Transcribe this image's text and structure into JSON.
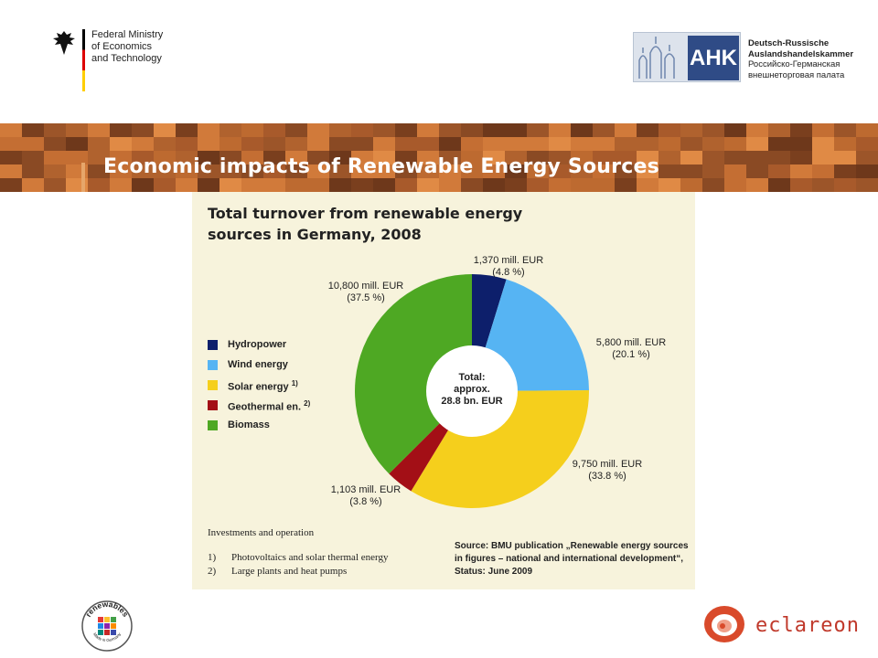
{
  "header": {
    "ministry_lines": "Federal Ministry\nof Economics\nand Technology",
    "ahk_label": "AHK",
    "ahk_lines": [
      "Deutsch-Russische",
      "Auslandshandelskammer",
      "Российско-Германская",
      "внешнеторговая палата"
    ]
  },
  "slide_title": "Economic impacts of Renewable Energy Sources",
  "chart_data": {
    "type": "pie",
    "title": "Total turnover from renewable energy sources in Germany, 2008",
    "center_label": "Total:\napprox.\n28.8 bn. EUR",
    "units": "mill. EUR",
    "slices": [
      {
        "name": "Hydropower",
        "value": 1370,
        "percent": 4.8,
        "color": "#0d1f6b",
        "label": "1,370 mill. EUR\n(4.8 %)"
      },
      {
        "name": "Wind energy",
        "value": 5800,
        "percent": 20.1,
        "color": "#56b4f3",
        "label": "5,800 mill. EUR\n(20.1 %)"
      },
      {
        "name": "Solar energy",
        "value": 9750,
        "percent": 33.8,
        "color": "#f5cf1c",
        "label": "9,750 mill. EUR\n(33.8 %)",
        "note": "1)"
      },
      {
        "name": "Geothermal en.",
        "value": 1103,
        "percent": 3.8,
        "color": "#a30f16",
        "label": "1,103 mill. EUR\n(3.8 %)",
        "note": "2)"
      },
      {
        "name": "Biomass",
        "value": 10800,
        "percent": 37.5,
        "color": "#4ea823",
        "label": "10,800 mill. EUR\n(37.5 %)"
      }
    ],
    "legend_position": "left"
  },
  "notes": {
    "heading": "Investments and operation",
    "items": [
      {
        "num": "1)",
        "text": "Photovoltaics and solar thermal energy"
      },
      {
        "num": "2)",
        "text": "Large plants and heat pumps"
      }
    ],
    "source": "Source: BMU publication „Renewable energy sources\nin figures – national and international development“,\nStatus: June 2009"
  },
  "footer": {
    "renewables_logo_text": "renewables",
    "renewables_logo_sub": "Made in Germany",
    "eclareon_text": "eclareon"
  }
}
